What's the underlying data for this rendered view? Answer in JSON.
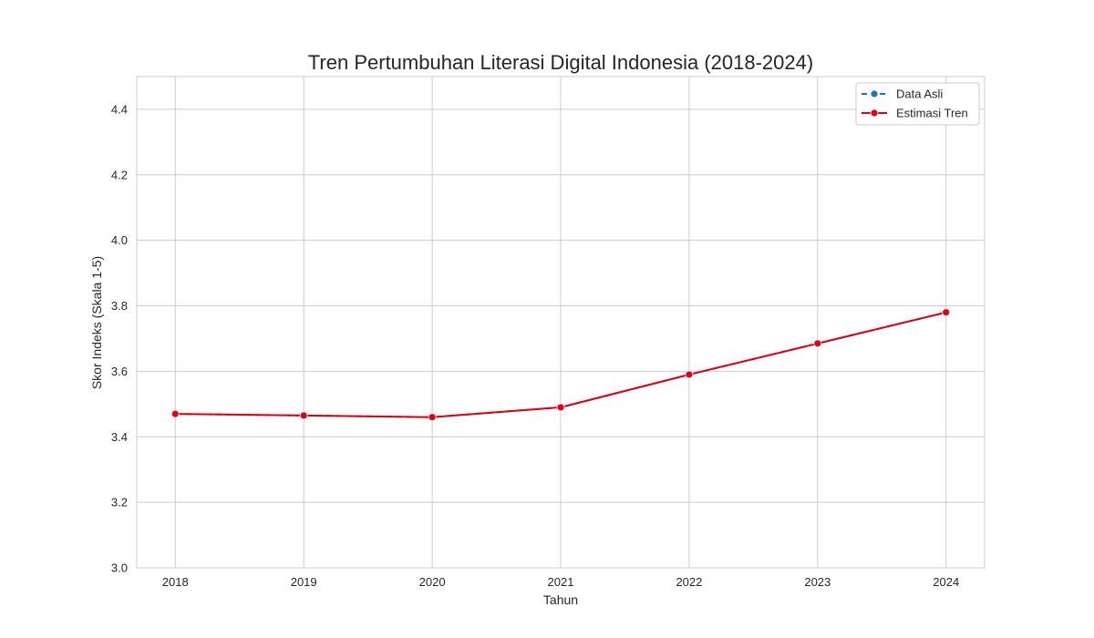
{
  "chart_data": {
    "type": "line",
    "title": "Tren Pertumbuhan Literasi Digital Indonesia (2018-2024)",
    "xlabel": "Tahun",
    "ylabel": "Skor Indeks (Skala 1-5)",
    "x": [
      2018,
      2019,
      2020,
      2021,
      2022,
      2023,
      2024
    ],
    "ylim": [
      3.0,
      4.5
    ],
    "yticks": [
      3.0,
      3.2,
      3.4,
      3.6,
      3.8,
      4.0,
      4.2,
      4.4
    ],
    "series": [
      {
        "name": "Data Asli",
        "values": [
          3.47,
          3.465,
          3.46,
          3.49,
          3.59,
          3.685,
          3.78
        ],
        "color": "#1f77b4",
        "style": "dashed"
      },
      {
        "name": "Estimasi Tren",
        "values": [
          3.47,
          3.465,
          3.46,
          3.49,
          3.59,
          3.685,
          3.78
        ],
        "color": "#e0000f",
        "style": "solid"
      }
    ],
    "grid": true,
    "legend_position": "top-right"
  }
}
